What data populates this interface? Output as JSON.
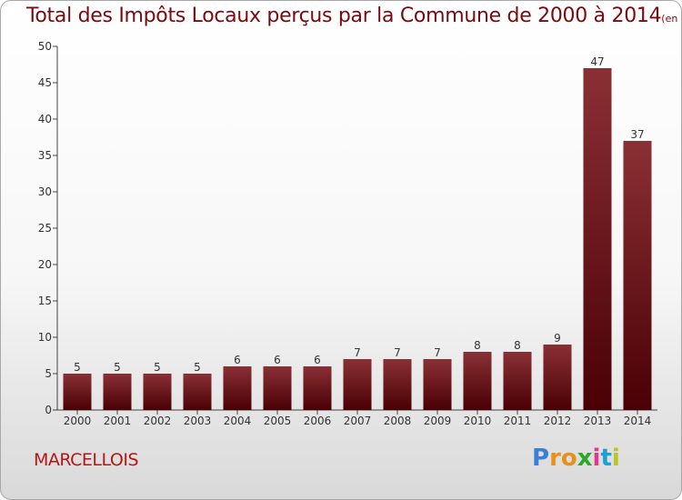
{
  "header": {
    "title": "Total des Impôts Locaux perçus par la Commune de 2000 à 2014",
    "unit": "(en milliers d'€)"
  },
  "footer": {
    "commune": "MARCELLOIS",
    "logo": "Proxiti"
  },
  "colors": {
    "bar_top": "#8a3035",
    "bar_bottom": "#4a0004",
    "title": "#7a0a0f",
    "commune": "#b01818"
  },
  "chart_data": {
    "type": "bar",
    "categories": [
      "2000",
      "2001",
      "2002",
      "2003",
      "2004",
      "2005",
      "2006",
      "2007",
      "2008",
      "2009",
      "2010",
      "2011",
      "2012",
      "2013",
      "2014"
    ],
    "values": [
      5,
      5,
      5,
      5,
      6,
      6,
      6,
      7,
      7,
      7,
      8,
      8,
      9,
      47,
      37
    ],
    "title": "Total des Impôts Locaux perçus par la Commune de 2000 à 2014",
    "ylim": [
      0,
      50
    ],
    "yticks": [
      0,
      5,
      10,
      15,
      20,
      25,
      30,
      35,
      40,
      45,
      50
    ],
    "grid": false,
    "legend": "none"
  }
}
